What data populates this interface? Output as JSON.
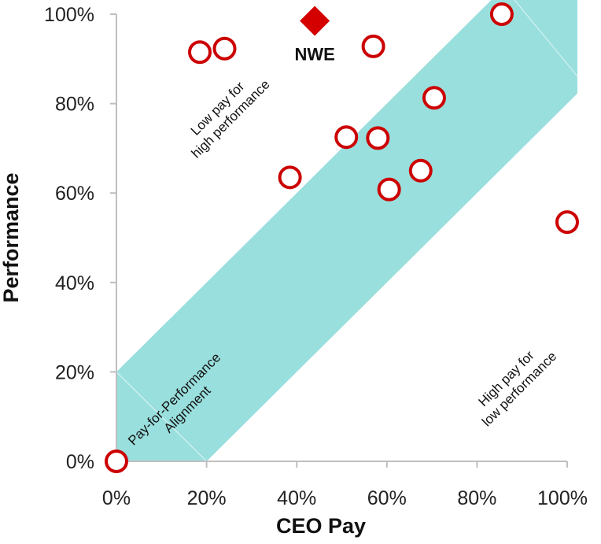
{
  "chart_data": {
    "type": "scatter",
    "title": "",
    "xlabel": "CEO Pay",
    "ylabel": "Performance",
    "xlim": [
      0,
      100
    ],
    "ylim": [
      0,
      100
    ],
    "x_ticks": [
      "0%",
      "20%",
      "40%",
      "60%",
      "80%",
      "100%"
    ],
    "y_ticks": [
      "0%",
      "20%",
      "40%",
      "60%",
      "80%",
      "100%"
    ],
    "grid": false,
    "alignment_band": {
      "label": "Pay-for-Performance Alignment",
      "lower_offset": -20,
      "upper_offset": 20,
      "color": "#99dfdd"
    },
    "peer_points": {
      "marker": "hollow-circle",
      "color": "#cc0000",
      "points": [
        {
          "x": 0,
          "y": 0
        },
        {
          "x": 18.5,
          "y": 91.5
        },
        {
          "x": 24,
          "y": 92.3
        },
        {
          "x": 38.5,
          "y": 63.5
        },
        {
          "x": 51,
          "y": 72.5
        },
        {
          "x": 57,
          "y": 92.8
        },
        {
          "x": 58,
          "y": 72.3
        },
        {
          "x": 60.5,
          "y": 60.8
        },
        {
          "x": 67.5,
          "y": 65
        },
        {
          "x": 70.5,
          "y": 81.3
        },
        {
          "x": 85.5,
          "y": 100
        },
        {
          "x": 100,
          "y": 53.5
        }
      ]
    },
    "highlight": {
      "label": "NWE",
      "marker": "diamond",
      "color": "#d40000",
      "x": 44,
      "y": 98.5
    },
    "annotations": {
      "upper_left": [
        "Low pay for",
        "high performance"
      ],
      "lower_right": [
        "High pay for",
        "low performance"
      ],
      "band": [
        "Pay-for-Performance",
        "Alignment"
      ]
    }
  }
}
